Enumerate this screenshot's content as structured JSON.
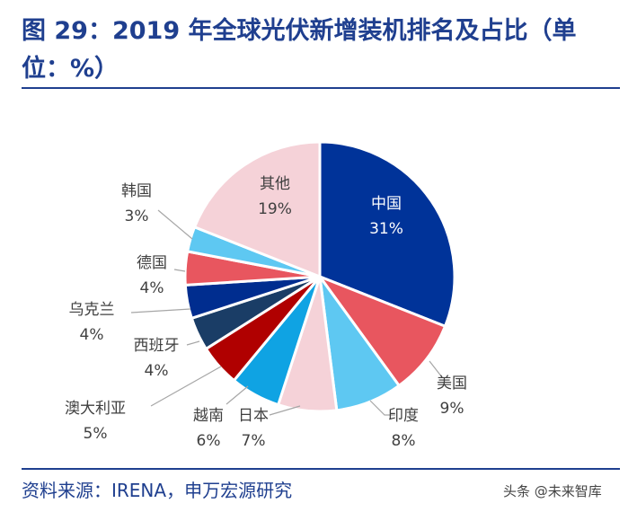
{
  "header": {
    "title": "图 29：2019 年全球光伏新增装机排名及占比（单位：%）"
  },
  "footer": {
    "source": "资料来源：IRENA，申万宏源研究",
    "watermark": "头条 @未来智库"
  },
  "chart_data": {
    "type": "pie",
    "title": "2019 年全球光伏新增装机排名及占比",
    "unit": "%",
    "start_angle_deg": 0,
    "direction": "clockwise",
    "slices": [
      {
        "label": "中国",
        "value": 31,
        "display": "31%",
        "color": "#003399"
      },
      {
        "label": "美国",
        "value": 9,
        "display": "9%",
        "color": "#e8565f"
      },
      {
        "label": "印度",
        "value": 8,
        "display": "8%",
        "color": "#5ec8f2"
      },
      {
        "label": "日本",
        "value": 7,
        "display": "7%",
        "color": "#f5d2d8"
      },
      {
        "label": "越南",
        "value": 6,
        "display": "6%",
        "color": "#0fa3e3"
      },
      {
        "label": "澳大利亚",
        "value": 5,
        "display": "5%",
        "color": "#b00000"
      },
      {
        "label": "西班牙",
        "value": 4,
        "display": "4%",
        "color": "#1a3d66"
      },
      {
        "label": "乌克兰",
        "value": 4,
        "display": "4%",
        "color": "#002d8f"
      },
      {
        "label": "德国",
        "value": 4,
        "display": "4%",
        "color": "#e8565f"
      },
      {
        "label": "韩国",
        "value": 3,
        "display": "3%",
        "color": "#5ec8f2"
      },
      {
        "label": "其他",
        "value": 19,
        "display": "19%",
        "color": "#f5d2d8"
      }
    ]
  }
}
